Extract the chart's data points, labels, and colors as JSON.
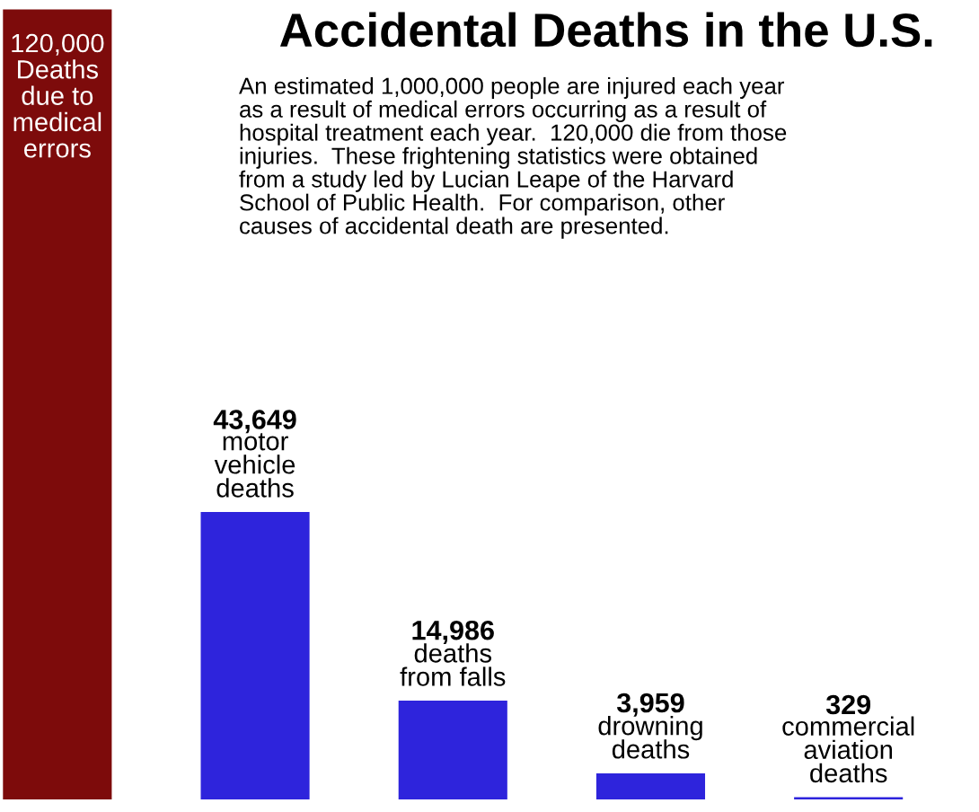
{
  "chart_data": {
    "type": "bar",
    "title": "Accidental Deaths in the U.S.",
    "subtitle": "An estimated 1,000,000 people are injured each year\nas a result of medical errors occurring as a result of\nhospital treatment each year.  120,000 die from those\ninjuries.  These frightening statistics were obtained\nfrom a study led by Lucian Leape of the Harvard\nSchool of Public Health.  For comparison, other\ncauses of accidental death are presented.",
    "categories": [
      "Deaths\ndue to\nmedical\nerrors",
      "motor\nvehicle\ndeaths",
      "deaths\nfrom falls",
      "drowning\ndeaths",
      "commercial\naviation\ndeaths"
    ],
    "values": [
      120000,
      43649,
      14986,
      3959,
      329
    ],
    "value_labels": [
      "120,000",
      "43,649",
      "14,986",
      "3,959",
      "329"
    ],
    "colors": [
      "#7d0b0b",
      "#2e24dc",
      "#2e24dc",
      "#2e24dc",
      "#2e24dc"
    ]
  }
}
